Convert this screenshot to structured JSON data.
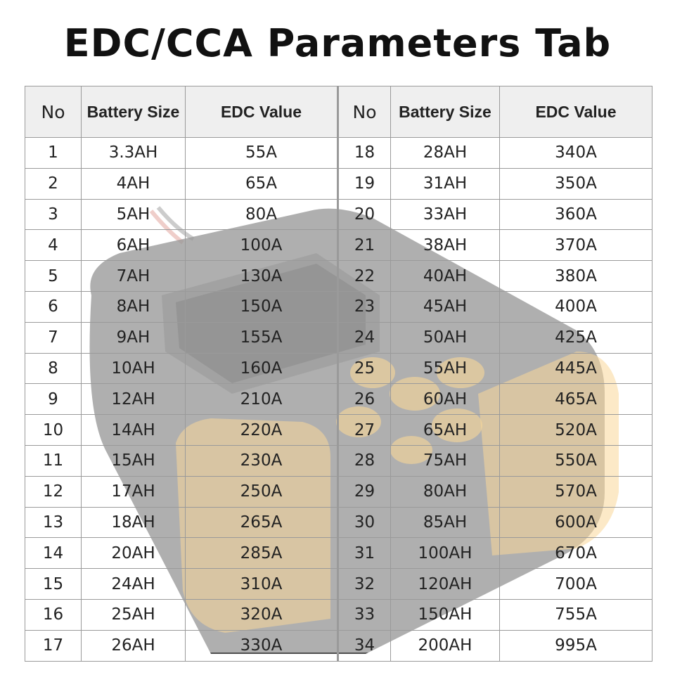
{
  "title": "EDC/CCA Parameters Tab",
  "headers": [
    "No",
    "Battery Size",
    "EDC Value",
    "No",
    "Battery Size",
    "EDC Value"
  ],
  "rows": [
    [
      "1",
      "3.3AH",
      "55A",
      "18",
      "28AH",
      "340A"
    ],
    [
      "2",
      "4AH",
      "65A",
      "19",
      "31AH",
      "350A"
    ],
    [
      "3",
      "5AH",
      "80A",
      "20",
      "33AH",
      "360A"
    ],
    [
      "4",
      "6AH",
      "100A",
      "21",
      "38AH",
      "370A"
    ],
    [
      "5",
      "7AH",
      "130A",
      "22",
      "40AH",
      "380A"
    ],
    [
      "6",
      "8AH",
      "150A",
      "23",
      "45AH",
      "400A"
    ],
    [
      "7",
      "9AH",
      "155A",
      "24",
      "50AH",
      "425A"
    ],
    [
      "8",
      "10AH",
      "160A",
      "25",
      "55AH",
      "445A"
    ],
    [
      "9",
      "12AH",
      "210A",
      "26",
      "60AH",
      "465A"
    ],
    [
      "10",
      "14AH",
      "220A",
      "27",
      "65AH",
      "520A"
    ],
    [
      "11",
      "15AH",
      "230A",
      "28",
      "75AH",
      "550A"
    ],
    [
      "12",
      "17AH",
      "250A",
      "29",
      "80AH",
      "570A"
    ],
    [
      "13",
      "18AH",
      "265A",
      "30",
      "85AH",
      "600A"
    ],
    [
      "14",
      "20AH",
      "285A",
      "31",
      "100AH",
      "670A"
    ],
    [
      "15",
      "24AH",
      "310A",
      "32",
      "120AH",
      "700A"
    ],
    [
      "16",
      "25AH",
      "320A",
      "33",
      "150AH",
      "755A"
    ],
    [
      "17",
      "26AH",
      "330A",
      "34",
      "200AH",
      "995A"
    ]
  ],
  "colors": {
    "device_body": "#1c1c1c",
    "device_accent": "#f2a81d",
    "grid_line": "#9a9a9a"
  },
  "background_image": "battery-tester-device"
}
